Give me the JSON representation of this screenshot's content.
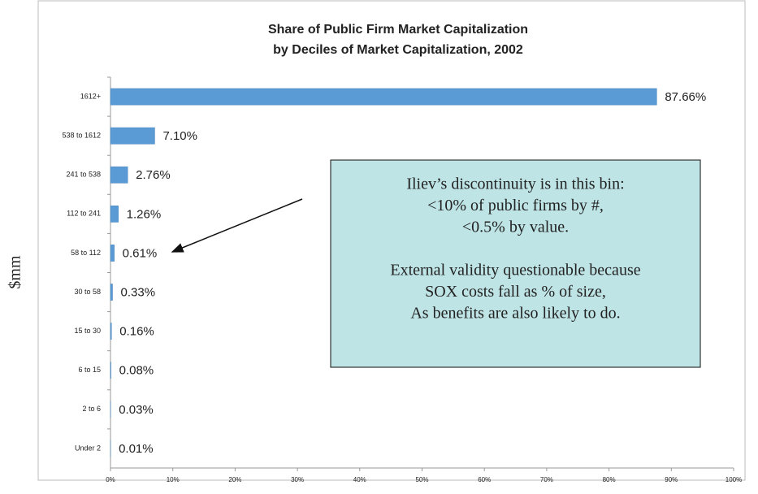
{
  "chart_data": {
    "type": "bar",
    "orientation": "horizontal",
    "title": [
      "Share of Public Firm Market Capitalization",
      "by Deciles of Market Capitalization, 2002"
    ],
    "y_label": "$mm",
    "categories": [
      "1612+",
      "538 to 1612",
      "241 to 538",
      "112 to 241",
      "58 to 112",
      "30 to 58",
      "15 to 30",
      "6 to 15",
      "2 to 6",
      "Under 2"
    ],
    "values": [
      87.66,
      7.1,
      2.76,
      1.26,
      0.61,
      0.33,
      0.16,
      0.08,
      0.03,
      0.01
    ],
    "value_labels": [
      "87.66%",
      "7.10%",
      "2.76%",
      "1.26%",
      "0.61%",
      "0.33%",
      "0.16%",
      "0.08%",
      "0.03%",
      "0.01%"
    ],
    "color": "#5b9bd5",
    "xlim": [
      0,
      100
    ],
    "xticks": [
      {
        "value": 0,
        "label": "0%"
      },
      {
        "value": 10,
        "label": "10%"
      },
      {
        "value": 20,
        "label": "20%"
      },
      {
        "value": 30,
        "label": "30%"
      },
      {
        "value": 40,
        "label": "40%"
      },
      {
        "value": 50,
        "label": "50%"
      },
      {
        "value": 60,
        "label": "60%"
      },
      {
        "value": 70,
        "label": "70%"
      },
      {
        "value": 80,
        "label": "80%"
      },
      {
        "value": 90,
        "label": "90%"
      },
      {
        "value": 100,
        "label": "100%"
      }
    ],
    "grid": false,
    "annotation": {
      "paragraphs": [
        [
          "Iliev’s discontinuity is in this bin:",
          "<10% of public firms by #,",
          "<0.5% by value."
        ],
        [
          "External validity questionable because",
          "SOX costs fall as % of size,",
          "As benefits are also likely to do."
        ]
      ]
    }
  }
}
